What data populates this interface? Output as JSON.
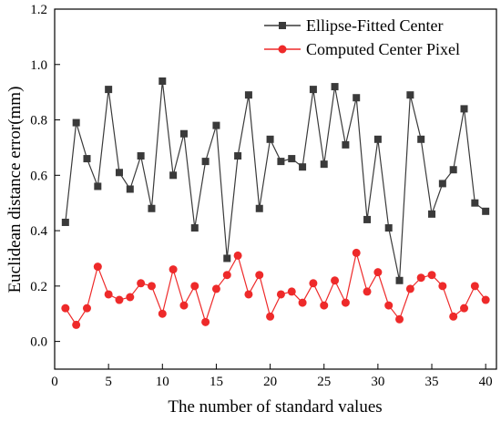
{
  "chart_data": {
    "type": "line",
    "xlabel": "The number of standard values",
    "ylabel": "Euclidean distance error(mm)",
    "xlim": [
      0,
      41
    ],
    "ylim": [
      -0.1,
      1.2
    ],
    "x_ticks": [
      0,
      5,
      10,
      15,
      20,
      25,
      30,
      35,
      40
    ],
    "y_ticks": [
      0.0,
      0.2,
      0.4,
      0.6,
      0.8,
      1.0,
      1.2
    ],
    "y_tick_labels": [
      "0.0",
      "0.2",
      "0.4",
      "0.6",
      "0.8",
      "1.0",
      "1.2"
    ],
    "grid": false,
    "legend_position": "top-right",
    "x": [
      1,
      2,
      3,
      4,
      5,
      6,
      7,
      8,
      9,
      10,
      11,
      12,
      13,
      14,
      15,
      16,
      17,
      18,
      19,
      20,
      21,
      22,
      23,
      24,
      25,
      26,
      27,
      28,
      29,
      30,
      31,
      32,
      33,
      34,
      35,
      36,
      37,
      38,
      39,
      40
    ],
    "series": [
      {
        "name": "Ellipse-Fitted Center",
        "color": "#3a3a3a",
        "marker": "square",
        "values": [
          0.43,
          0.79,
          0.66,
          0.56,
          0.91,
          0.61,
          0.55,
          0.67,
          0.48,
          0.94,
          0.6,
          0.75,
          0.41,
          0.65,
          0.78,
          0.3,
          0.67,
          0.89,
          0.48,
          0.73,
          0.65,
          0.66,
          0.63,
          0.91,
          0.64,
          0.92,
          0.71,
          0.88,
          0.44,
          0.73,
          0.41,
          0.22,
          0.89,
          0.73,
          0.46,
          0.57,
          0.62,
          0.84,
          0.5,
          0.47
        ]
      },
      {
        "name": "Computed Center Pixel",
        "color": "#ee2a2a",
        "marker": "circle",
        "values": [
          0.12,
          0.06,
          0.12,
          0.27,
          0.17,
          0.15,
          0.16,
          0.21,
          0.2,
          0.1,
          0.26,
          0.13,
          0.2,
          0.07,
          0.19,
          0.24,
          0.31,
          0.17,
          0.24,
          0.09,
          0.17,
          0.18,
          0.14,
          0.21,
          0.13,
          0.22,
          0.14,
          0.32,
          0.18,
          0.25,
          0.13,
          0.08,
          0.19,
          0.23,
          0.24,
          0.2,
          0.09,
          0.12,
          0.2,
          0.15
        ]
      }
    ]
  }
}
